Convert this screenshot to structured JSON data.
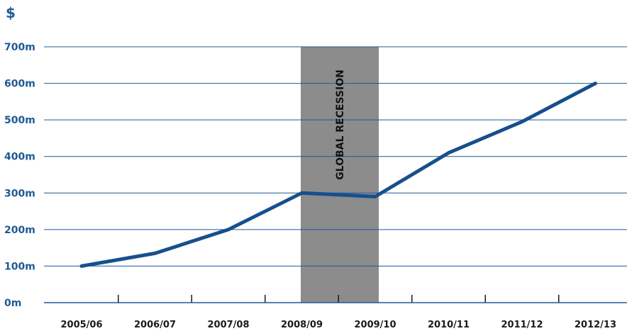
{
  "chart_data": {
    "type": "line",
    "unit_label": "$",
    "y_tick_labels": [
      "0m",
      "100m",
      "200m",
      "300m",
      "400m",
      "500m",
      "600m",
      "700m"
    ],
    "y_tick_values": [
      0,
      100,
      200,
      300,
      400,
      500,
      600,
      700
    ],
    "ylim": [
      0,
      700
    ],
    "categories": [
      "2005/06",
      "2006/07",
      "2007/08",
      "2008/09",
      "2009/10",
      "2010/11",
      "2011/12",
      "2012/13"
    ],
    "series": [
      {
        "points": [
          {
            "x": "2005/06",
            "y": 100
          },
          {
            "x": "2006/07",
            "y": 135
          },
          {
            "x": "2007/08",
            "y": 200
          },
          {
            "x": "2008/09",
            "y": 300
          },
          {
            "x": "2009/10",
            "y": 290
          },
          {
            "x": "2010/11",
            "y": 410
          },
          {
            "x": "2011/12",
            "y": 495
          },
          {
            "x": "2012/13",
            "y": 600
          }
        ]
      }
    ],
    "annotation": {
      "label": "GLOBAL RECESSION",
      "from": "2008/09",
      "to": "2009/10"
    },
    "grid": true,
    "colors": {
      "line": "#174f8c",
      "grid": "#1f5a94",
      "band": "#8c8c8c",
      "y_labels": "#1f5a94"
    }
  }
}
